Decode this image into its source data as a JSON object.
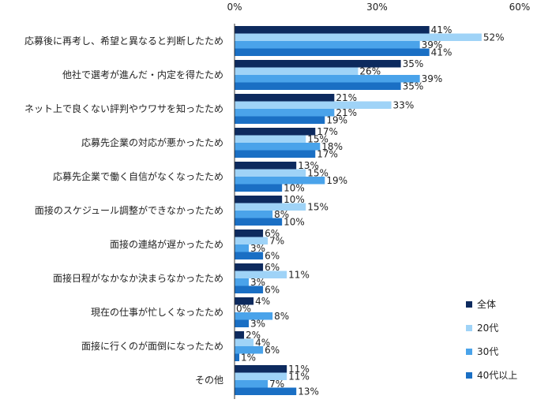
{
  "chart_data": {
    "type": "bar",
    "orientation": "horizontal",
    "categories": [
      "応募後に再考し、希望と異なると判断したため",
      "他社で選考が進んだ・内定を得たため",
      "ネット上で良くない評判やウワサを知ったため",
      "応募先企業の対応が悪かったため",
      "応募先企業で働く自信がなくなったため",
      "面接のスケジュール調整ができなかったため",
      "面接の連絡が遅かったため",
      "面接日程がなかなか決まらなかったため",
      "現在の仕事が忙しくなったため",
      "面接に行くのが面倒になったため",
      "その他"
    ],
    "series": [
      {
        "name": "全体",
        "color": "#0d2a5e",
        "values": [
          41,
          35,
          21,
          17,
          13,
          10,
          6,
          6,
          4,
          2,
          11
        ]
      },
      {
        "name": "20代",
        "color": "#9fd3f7",
        "values": [
          52,
          26,
          33,
          15,
          15,
          15,
          7,
          11,
          0,
          4,
          11
        ]
      },
      {
        "name": "30代",
        "color": "#4aa3ea",
        "values": [
          39,
          39,
          21,
          18,
          19,
          8,
          3,
          3,
          8,
          6,
          7
        ]
      },
      {
        "name": "40代以上",
        "color": "#1a6fc4",
        "values": [
          41,
          35,
          19,
          17,
          10,
          10,
          6,
          6,
          3,
          1,
          13
        ]
      }
    ],
    "xlim": [
      0,
      60
    ],
    "xticks": [
      "0%",
      "30%",
      "60%"
    ],
    "value_suffix": "%",
    "legend_position": "bottom-right",
    "grid": false
  }
}
